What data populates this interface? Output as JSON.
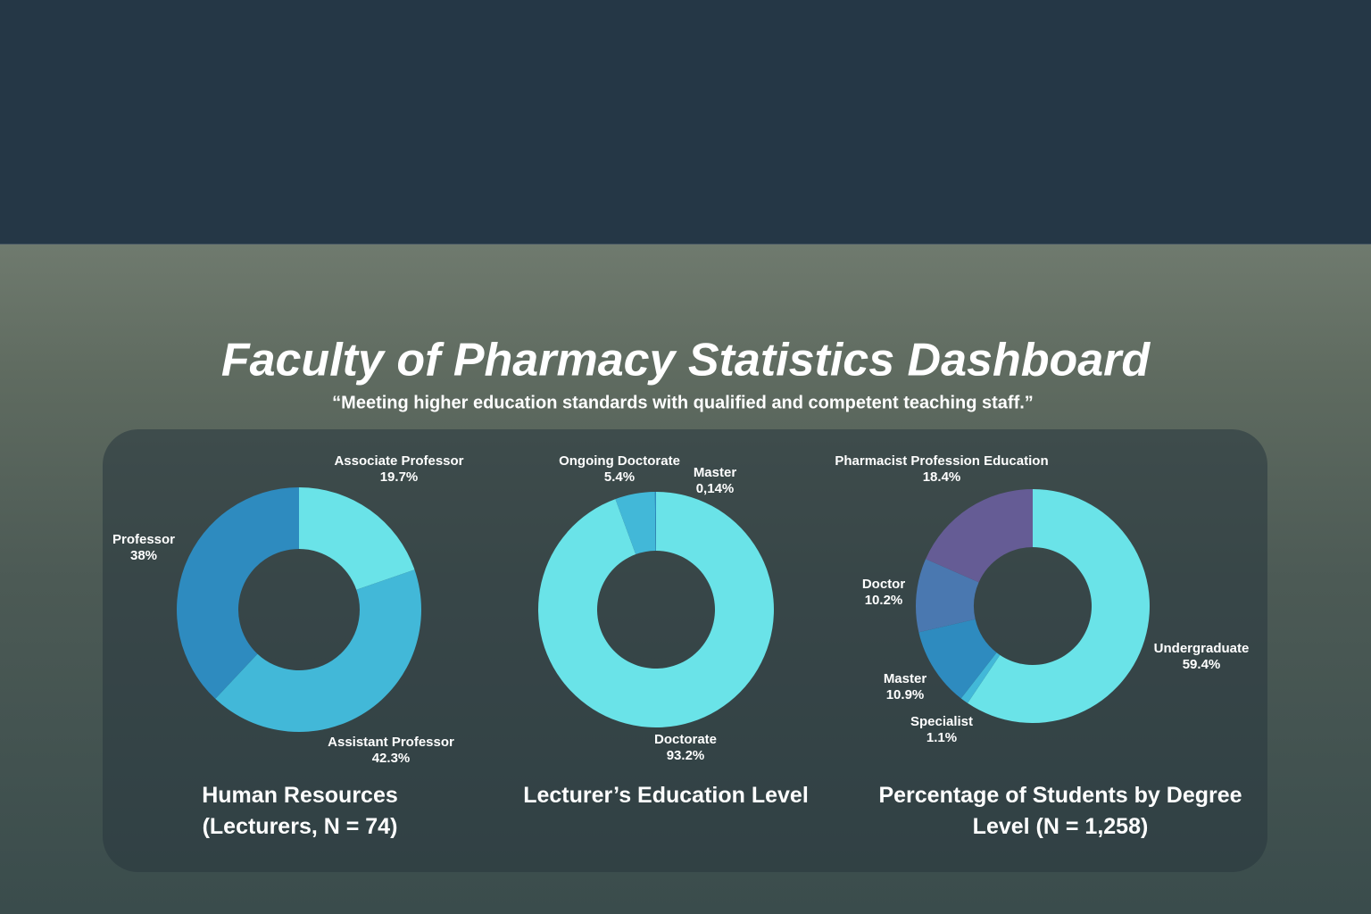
{
  "title": "Faculty of Pharmacy Statistics Dashboard",
  "subtitle": "“Meeting higher education standards with qualified and competent teaching staff.”",
  "chart_data": [
    {
      "type": "pie",
      "title": "Human Resources (Lecturers, N = 74)",
      "categories": [
        "Associate Professor",
        "Assistant Professor",
        "Professor"
      ],
      "values": [
        19.7,
        42.3,
        38
      ],
      "value_labels": [
        "19.7%",
        "42.3%",
        "38%"
      ],
      "colors": [
        "#6ae3e8",
        "#42b8d8",
        "#2e8bbf"
      ]
    },
    {
      "type": "pie",
      "title": "Lecturer’s Education Level",
      "categories": [
        "Doctorate",
        "Ongoing Doctorate",
        "Master"
      ],
      "values": [
        93.2,
        5.4,
        0.14
      ],
      "value_labels": [
        "93.2%",
        "5.4%",
        "0,14%"
      ],
      "colors": [
        "#6ae3e8",
        "#42b8d8",
        "#2e8bbf"
      ]
    },
    {
      "type": "pie",
      "title": "Percentage of Students by Degree Level (N = 1,258)",
      "categories": [
        "Undergraduate",
        "Specialist",
        "Master",
        "Doctor",
        "Pharmacist Profession Education"
      ],
      "values": [
        59.4,
        1.1,
        10.9,
        10.2,
        18.4
      ],
      "value_labels": [
        "59.4%",
        "1.1%",
        "10.9%",
        "10.2%",
        "18.4%"
      ],
      "colors": [
        "#6ae3e8",
        "#42b8d8",
        "#2e8bbf",
        "#4a78b0",
        "#655c95"
      ]
    }
  ]
}
